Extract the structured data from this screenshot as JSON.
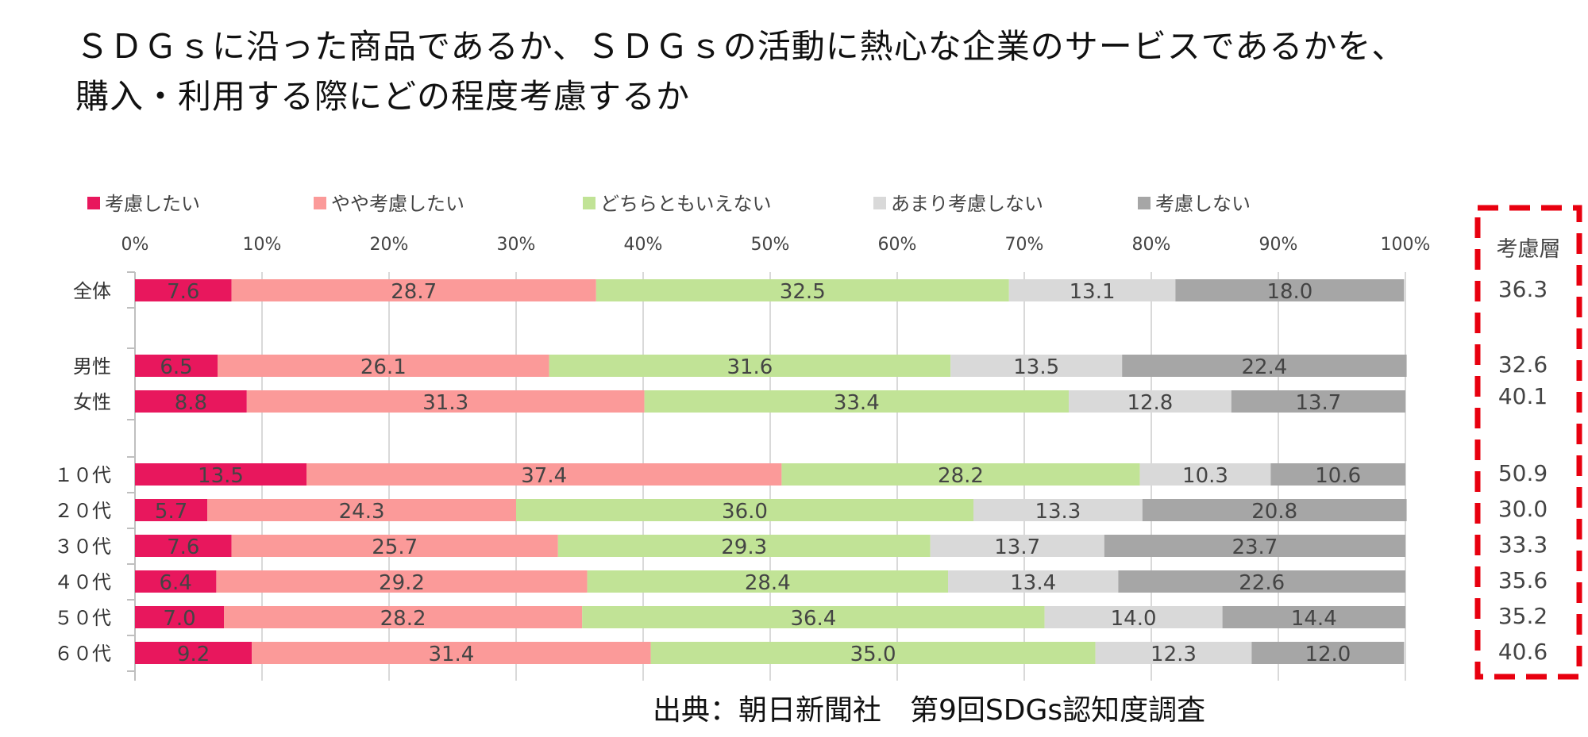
{
  "title": {
    "line1": "ＳＤＧｓに沿った商品であるか、ＳＤＧｓの活動に熱心な企業のサービスであるかを、",
    "line2": "購入・利用する際にどの程度考慮するか"
  },
  "source": "出典：朝日新聞社　第9回SDGs認知度調査",
  "colors": {
    "series": [
      "#e8175d",
      "#fb9a99",
      "#c1e396",
      "#d9d9d9",
      "#a6a6a6"
    ],
    "highlight_box": "#e8000f"
  },
  "chart_data": {
    "type": "bar",
    "orientation": "horizontal",
    "stacked": true,
    "xlim": [
      0,
      100
    ],
    "x_ticks": [
      "0%",
      "10%",
      "20%",
      "30%",
      "40%",
      "50%",
      "60%",
      "70%",
      "80%",
      "90%",
      "100%"
    ],
    "grid": true,
    "legend_position": "top",
    "categories": [
      "全体",
      "男性",
      "女性",
      "１０代",
      "２０代",
      "３０代",
      "４０代",
      "５０代",
      "６０代"
    ],
    "series": [
      {
        "name": "考慮したい",
        "values": [
          7.6,
          6.5,
          8.8,
          13.5,
          5.7,
          7.6,
          6.4,
          7.0,
          9.2
        ]
      },
      {
        "name": "やや考慮したい",
        "values": [
          28.7,
          26.1,
          31.3,
          37.4,
          24.3,
          25.7,
          29.2,
          28.2,
          31.4
        ]
      },
      {
        "name": "どちらともいえない",
        "values": [
          32.5,
          31.6,
          33.4,
          28.2,
          36.0,
          29.3,
          28.4,
          36.4,
          35.0
        ]
      },
      {
        "name": "あまり考慮しない",
        "values": [
          13.1,
          13.5,
          12.8,
          10.3,
          13.3,
          13.7,
          13.4,
          14.0,
          12.3
        ]
      },
      {
        "name": "考慮しない",
        "values": [
          18.0,
          22.4,
          13.7,
          10.6,
          20.8,
          23.7,
          22.6,
          14.4,
          12.0
        ]
      }
    ],
    "side_column": {
      "header": "考慮層",
      "values": [
        "36.3",
        "32.6",
        "40.1",
        "50.9",
        "30.0",
        "33.3",
        "35.6",
        "35.2",
        "40.6"
      ]
    }
  }
}
